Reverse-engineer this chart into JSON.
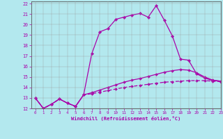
{
  "background_color": "#b3e8ee",
  "grid_color": "#999999",
  "line_color": "#aa00aa",
  "xlim": [
    -0.5,
    23
  ],
  "ylim": [
    12,
    22.2
  ],
  "xlabel": "Windchill (Refroidissement éolien,°C)",
  "yticks": [
    12,
    13,
    14,
    15,
    16,
    17,
    18,
    19,
    20,
    21,
    22
  ],
  "xticks": [
    0,
    1,
    2,
    3,
    4,
    5,
    6,
    7,
    8,
    9,
    10,
    11,
    12,
    13,
    14,
    15,
    16,
    17,
    18,
    19,
    20,
    21,
    22,
    23
  ],
  "curve1_x": [
    0,
    1,
    2,
    3,
    4,
    5,
    6,
    7,
    8,
    9,
    10,
    11,
    12,
    13,
    14,
    15,
    16,
    17,
    18,
    19,
    20,
    21,
    22,
    23
  ],
  "curve1_y": [
    13.0,
    12.0,
    12.4,
    12.9,
    12.5,
    12.2,
    13.3,
    17.2,
    19.3,
    19.6,
    20.5,
    20.7,
    20.9,
    21.05,
    20.7,
    21.8,
    20.4,
    18.9,
    16.7,
    16.6,
    15.3,
    14.9,
    14.65,
    14.6
  ],
  "curve2_x": [
    0,
    1,
    2,
    3,
    4,
    5,
    6,
    7,
    8,
    9,
    10,
    11,
    12,
    13,
    14,
    15,
    16,
    17,
    18,
    19,
    20,
    21,
    22,
    23
  ],
  "curve2_y": [
    13.0,
    12.0,
    12.4,
    12.9,
    12.5,
    12.2,
    13.3,
    13.4,
    13.55,
    13.7,
    13.85,
    14.0,
    14.1,
    14.2,
    14.3,
    14.4,
    14.5,
    14.55,
    14.6,
    14.65,
    14.65,
    14.65,
    14.6,
    14.55
  ],
  "curve3_x": [
    0,
    1,
    2,
    3,
    4,
    5,
    6,
    7,
    8,
    9,
    10,
    11,
    12,
    13,
    14,
    15,
    16,
    17,
    18,
    19,
    20,
    21,
    22,
    23
  ],
  "curve3_y": [
    13.0,
    12.0,
    12.4,
    12.9,
    12.5,
    12.2,
    13.3,
    13.5,
    13.75,
    14.0,
    14.25,
    14.5,
    14.7,
    14.85,
    15.05,
    15.25,
    15.45,
    15.6,
    15.7,
    15.65,
    15.4,
    15.0,
    14.7,
    14.6
  ]
}
